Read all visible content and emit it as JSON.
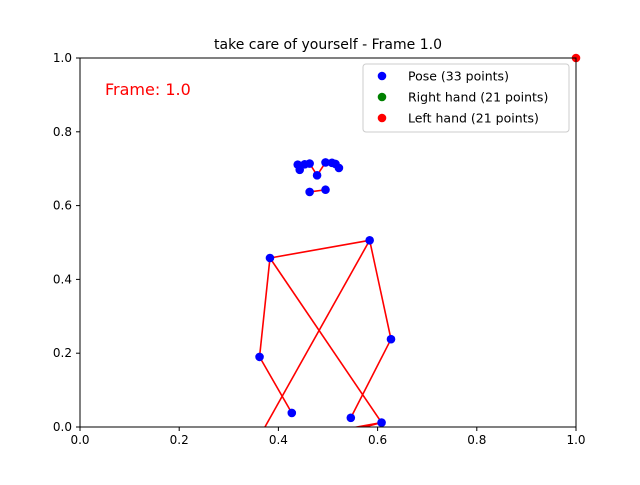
{
  "chart_data": {
    "type": "scatter",
    "title": "take care of yourself - Frame 1.0",
    "xlabel": "",
    "ylabel": "",
    "xlim": [
      0.0,
      1.0
    ],
    "ylim": [
      0.0,
      1.0
    ],
    "x_ticks": [
      "0.0",
      "0.2",
      "0.4",
      "0.6",
      "0.8",
      "1.0"
    ],
    "y_ticks": [
      "0.0",
      "0.2",
      "0.4",
      "0.6",
      "0.8",
      "1.0"
    ],
    "grid": false,
    "annotation": {
      "text": "Frame: 1.0",
      "color": "#ff0000"
    },
    "legend": {
      "placement": "top-right",
      "entries": [
        {
          "label": "Pose (33 points)",
          "color": "#0000ff"
        },
        {
          "label": "Right hand (21 points)",
          "color": "#008000"
        },
        {
          "label": "Left hand (21 points)",
          "color": "#ff0000"
        }
      ]
    },
    "skeleton_color": "#ff0000",
    "series": [
      {
        "name": "Pose (33 points)",
        "color": "#0000ff",
        "points": [
          [
            0.478,
            0.682
          ],
          [
            0.463,
            0.714
          ],
          [
            0.453,
            0.712
          ],
          [
            0.443,
            0.697
          ],
          [
            0.495,
            0.717
          ],
          [
            0.508,
            0.716
          ],
          [
            0.522,
            0.702
          ],
          [
            0.439,
            0.711
          ],
          [
            0.515,
            0.713
          ],
          [
            0.463,
            0.637
          ],
          [
            0.495,
            0.643
          ],
          [
            0.383,
            0.458
          ],
          [
            0.584,
            0.506
          ],
          [
            0.362,
            0.19
          ],
          [
            0.627,
            0.238
          ],
          [
            0.427,
            0.038
          ],
          [
            0.546,
            0.025
          ],
          [
            0.608,
            0.012
          ]
        ],
        "connections": [
          [
            0,
            1
          ],
          [
            1,
            2
          ],
          [
            2,
            3
          ],
          [
            3,
            7
          ],
          [
            0,
            4
          ],
          [
            4,
            5
          ],
          [
            5,
            6
          ],
          [
            6,
            8
          ],
          [
            9,
            10
          ],
          [
            11,
            12
          ],
          [
            11,
            13
          ],
          [
            13,
            15
          ],
          [
            12,
            14
          ],
          [
            14,
            16
          ],
          [
            11,
            17
          ],
          [
            12,
            18
          ],
          [
            17,
            18
          ],
          [
            17,
            19
          ],
          [
            18,
            20
          ],
          [
            20,
            21
          ]
        ],
        "offscreen_points": [
          [
            0.352,
            -0.05
          ],
          [
            0.43,
            -0.05
          ],
          [
            0.595,
            -0.05
          ],
          [
            0.6,
            -0.05
          ]
        ]
      },
      {
        "name": "Right hand (21 points)",
        "color": "#008000",
        "points": []
      },
      {
        "name": "Left hand (21 points)",
        "color": "#ff0000",
        "points": [
          [
            1.0,
            1.0
          ]
        ]
      }
    ]
  }
}
